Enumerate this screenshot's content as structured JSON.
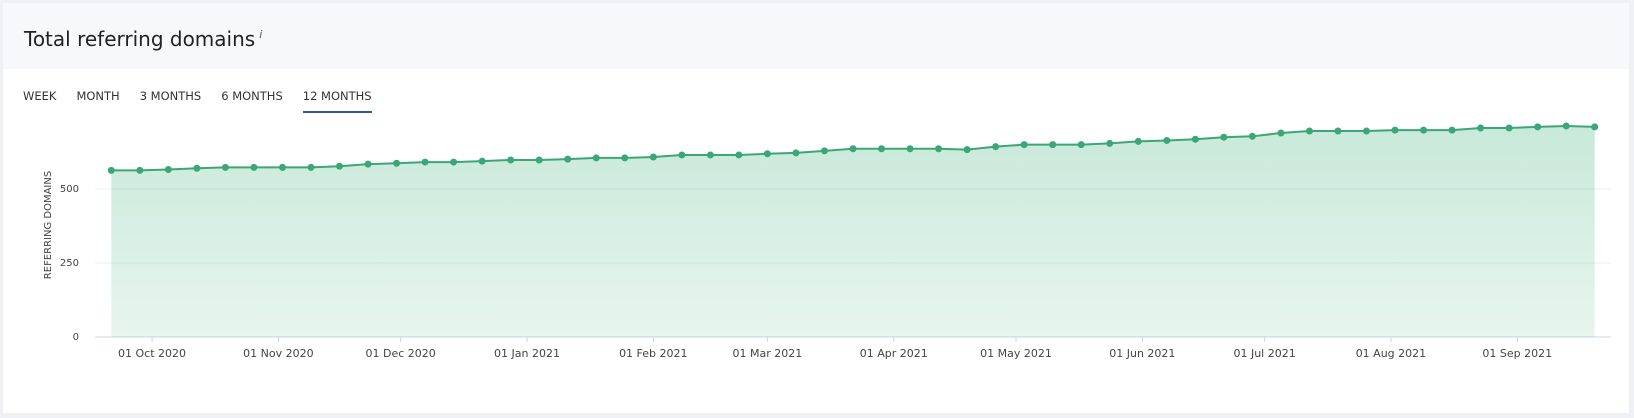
{
  "header": {
    "title": "Total referring domains",
    "info": "i"
  },
  "tabs": {
    "items": [
      "WEEK",
      "MONTH",
      "3 MONTHS",
      "6 MONTHS",
      "12 MONTHS"
    ],
    "active": 4
  },
  "chart_data": {
    "type": "area",
    "ylabel": "REFERRING DOMAINS",
    "color": "#3ba776",
    "x": [
      "2020-09-21",
      "2020-09-28",
      "2020-10-05",
      "2020-10-12",
      "2020-10-19",
      "2020-10-26",
      "2020-11-02",
      "2020-11-09",
      "2020-11-16",
      "2020-11-23",
      "2020-11-30",
      "2020-12-07",
      "2020-12-14",
      "2020-12-21",
      "2020-12-28",
      "2021-01-04",
      "2021-01-11",
      "2021-01-18",
      "2021-01-25",
      "2021-02-01",
      "2021-02-08",
      "2021-02-15",
      "2021-02-22",
      "2021-03-01",
      "2021-03-08",
      "2021-03-15",
      "2021-03-22",
      "2021-03-29",
      "2021-04-05",
      "2021-04-12",
      "2021-04-19",
      "2021-04-26",
      "2021-05-03",
      "2021-05-10",
      "2021-05-17",
      "2021-05-24",
      "2021-05-31",
      "2021-06-07",
      "2021-06-14",
      "2021-06-21",
      "2021-06-28",
      "2021-07-05",
      "2021-07-12",
      "2021-07-19",
      "2021-07-26",
      "2021-08-02",
      "2021-08-09",
      "2021-08-16",
      "2021-08-23",
      "2021-08-30",
      "2021-09-06",
      "2021-09-13",
      "2021-09-20"
    ],
    "values": [
      563,
      563,
      566,
      570,
      573,
      573,
      573,
      573,
      577,
      584,
      587,
      591,
      591,
      594,
      598,
      598,
      601,
      605,
      605,
      608,
      615,
      615,
      615,
      619,
      622,
      629,
      636,
      636,
      636,
      636,
      633,
      643,
      650,
      650,
      650,
      654,
      661,
      664,
      668,
      675,
      678,
      689,
      696,
      696,
      696,
      699,
      699,
      699,
      706,
      706,
      710,
      713,
      710
    ],
    "xlim": [
      "2020-09-17",
      "2021-09-24"
    ],
    "xticks": [
      {
        "value": "2020-10-01",
        "label": "01 Oct 2020"
      },
      {
        "value": "2020-11-01",
        "label": "01 Nov 2020"
      },
      {
        "value": "2020-12-01",
        "label": "01 Dec 2020"
      },
      {
        "value": "2021-01-01",
        "label": "01 Jan 2021"
      },
      {
        "value": "2021-02-01",
        "label": "01 Feb 2021"
      },
      {
        "value": "2021-03-01",
        "label": "01 Mar 2021"
      },
      {
        "value": "2021-04-01",
        "label": "01 Apr 2021"
      },
      {
        "value": "2021-05-01",
        "label": "01 May 2021"
      },
      {
        "value": "2021-06-01",
        "label": "01 Jun 2021"
      },
      {
        "value": "2021-07-01",
        "label": "01 Jul 2021"
      },
      {
        "value": "2021-08-01",
        "label": "01 Aug 2021"
      },
      {
        "value": "2021-09-01",
        "label": "01 Sep 2021"
      }
    ],
    "ylim": [
      0,
      750
    ],
    "yticks": [
      0,
      250,
      500
    ],
    "grid": true
  }
}
